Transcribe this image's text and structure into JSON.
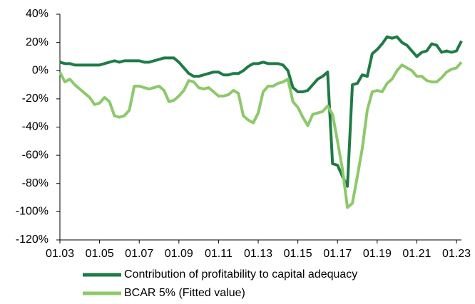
{
  "chart_data": {
    "type": "line",
    "x": [
      2003,
      2003.25,
      2003.5,
      2003.75,
      2004,
      2004.25,
      2004.5,
      2004.75,
      2005,
      2005.25,
      2005.5,
      2005.75,
      2006,
      2006.25,
      2006.5,
      2006.75,
      2007,
      2007.25,
      2007.5,
      2007.75,
      2008,
      2008.25,
      2008.5,
      2008.75,
      2009,
      2009.25,
      2009.5,
      2009.75,
      2010,
      2010.25,
      2010.5,
      2010.75,
      2011,
      2011.25,
      2011.5,
      2011.75,
      2012,
      2012.25,
      2012.5,
      2012.75,
      2013,
      2013.25,
      2013.5,
      2013.75,
      2014,
      2014.25,
      2014.5,
      2014.75,
      2015,
      2015.25,
      2015.5,
      2015.75,
      2016,
      2016.25,
      2016.5,
      2016.75,
      2017,
      2017.25,
      2017.5,
      2017.75,
      2018,
      2018.25,
      2018.5,
      2018.75,
      2019,
      2019.25,
      2019.5,
      2019.75,
      2020,
      2020.25,
      2020.5,
      2020.75,
      2021,
      2021.25,
      2021.5,
      2021.75,
      2022,
      2022.25,
      2022.5,
      2022.75,
      2023,
      2023.25
    ],
    "series": [
      {
        "name": "Contribution of profitability to capital adequacy",
        "color": "#1e7b45",
        "values": [
          6,
          5,
          5,
          4,
          4,
          4,
          4,
          4,
          4,
          5,
          6,
          7,
          6,
          7,
          7,
          7,
          7,
          6,
          6,
          7,
          8,
          9,
          9,
          9,
          6,
          2,
          -2,
          -4,
          -4,
          -3,
          -2,
          -1,
          -1,
          -3,
          -3,
          -2,
          -2,
          0,
          3,
          5,
          5,
          6,
          5,
          5,
          5,
          4,
          0,
          -12,
          -15,
          -15,
          -14,
          -10,
          -6,
          -4,
          -1,
          -66,
          -67,
          -75,
          -82,
          -10,
          -9,
          -3,
          -4,
          12,
          15,
          19,
          24,
          23,
          24,
          20,
          18,
          14,
          10,
          13,
          14,
          19,
          18,
          13,
          14,
          13,
          14,
          21
        ]
      },
      {
        "name": "BCAR 5% (Fitted value)",
        "color": "#8cc96a",
        "values": [
          -1,
          -8,
          -6,
          -10,
          -13,
          -16,
          -19,
          -24,
          -23,
          -19,
          -22,
          -32,
          -33,
          -32,
          -28,
          -11,
          -11,
          -12,
          -13,
          -12,
          -11,
          -14,
          -22,
          -21,
          -18,
          -14,
          -7,
          -8,
          -12,
          -13,
          -12,
          -15,
          -18,
          -18,
          -17,
          -14,
          -16,
          -32,
          -35,
          -37,
          -30,
          -15,
          -11,
          -11,
          -9,
          -8,
          -6,
          -22,
          -26,
          -33,
          -39,
          -31,
          -30,
          -29,
          -25,
          -31,
          -50,
          -70,
          -97,
          -94,
          -75,
          -55,
          -28,
          -15,
          -14,
          -15,
          -9,
          -6,
          0,
          4,
          2,
          0,
          -4,
          -4,
          -7,
          -8,
          -8,
          -5,
          -1,
          1,
          2,
          6
        ]
      }
    ],
    "xlim": [
      2003,
      2023.25
    ],
    "xticks": [
      {
        "value": 2003,
        "label": "01.03"
      },
      {
        "value": 2005,
        "label": "01.05"
      },
      {
        "value": 2007,
        "label": "01.07"
      },
      {
        "value": 2009,
        "label": "01.09"
      },
      {
        "value": 2011,
        "label": "01.11"
      },
      {
        "value": 2013,
        "label": "01.13"
      },
      {
        "value": 2015,
        "label": "01.15"
      },
      {
        "value": 2017,
        "label": "01.17"
      },
      {
        "value": 2019,
        "label": "01.19"
      },
      {
        "value": 2021,
        "label": "01.21"
      },
      {
        "value": 2023,
        "label": "01.23"
      }
    ],
    "ylim": [
      -120,
      40
    ],
    "yticks": [
      {
        "value": -120,
        "label": "-120%"
      },
      {
        "value": -100,
        "label": "-100%"
      },
      {
        "value": -80,
        "label": "-80%"
      },
      {
        "value": -60,
        "label": "-60%"
      },
      {
        "value": -40,
        "label": "-40%"
      },
      {
        "value": -20,
        "label": "-20%"
      },
      {
        "value": 0,
        "label": "0%"
      },
      {
        "value": 20,
        "label": "20%"
      },
      {
        "value": 40,
        "label": "40%"
      }
    ]
  }
}
